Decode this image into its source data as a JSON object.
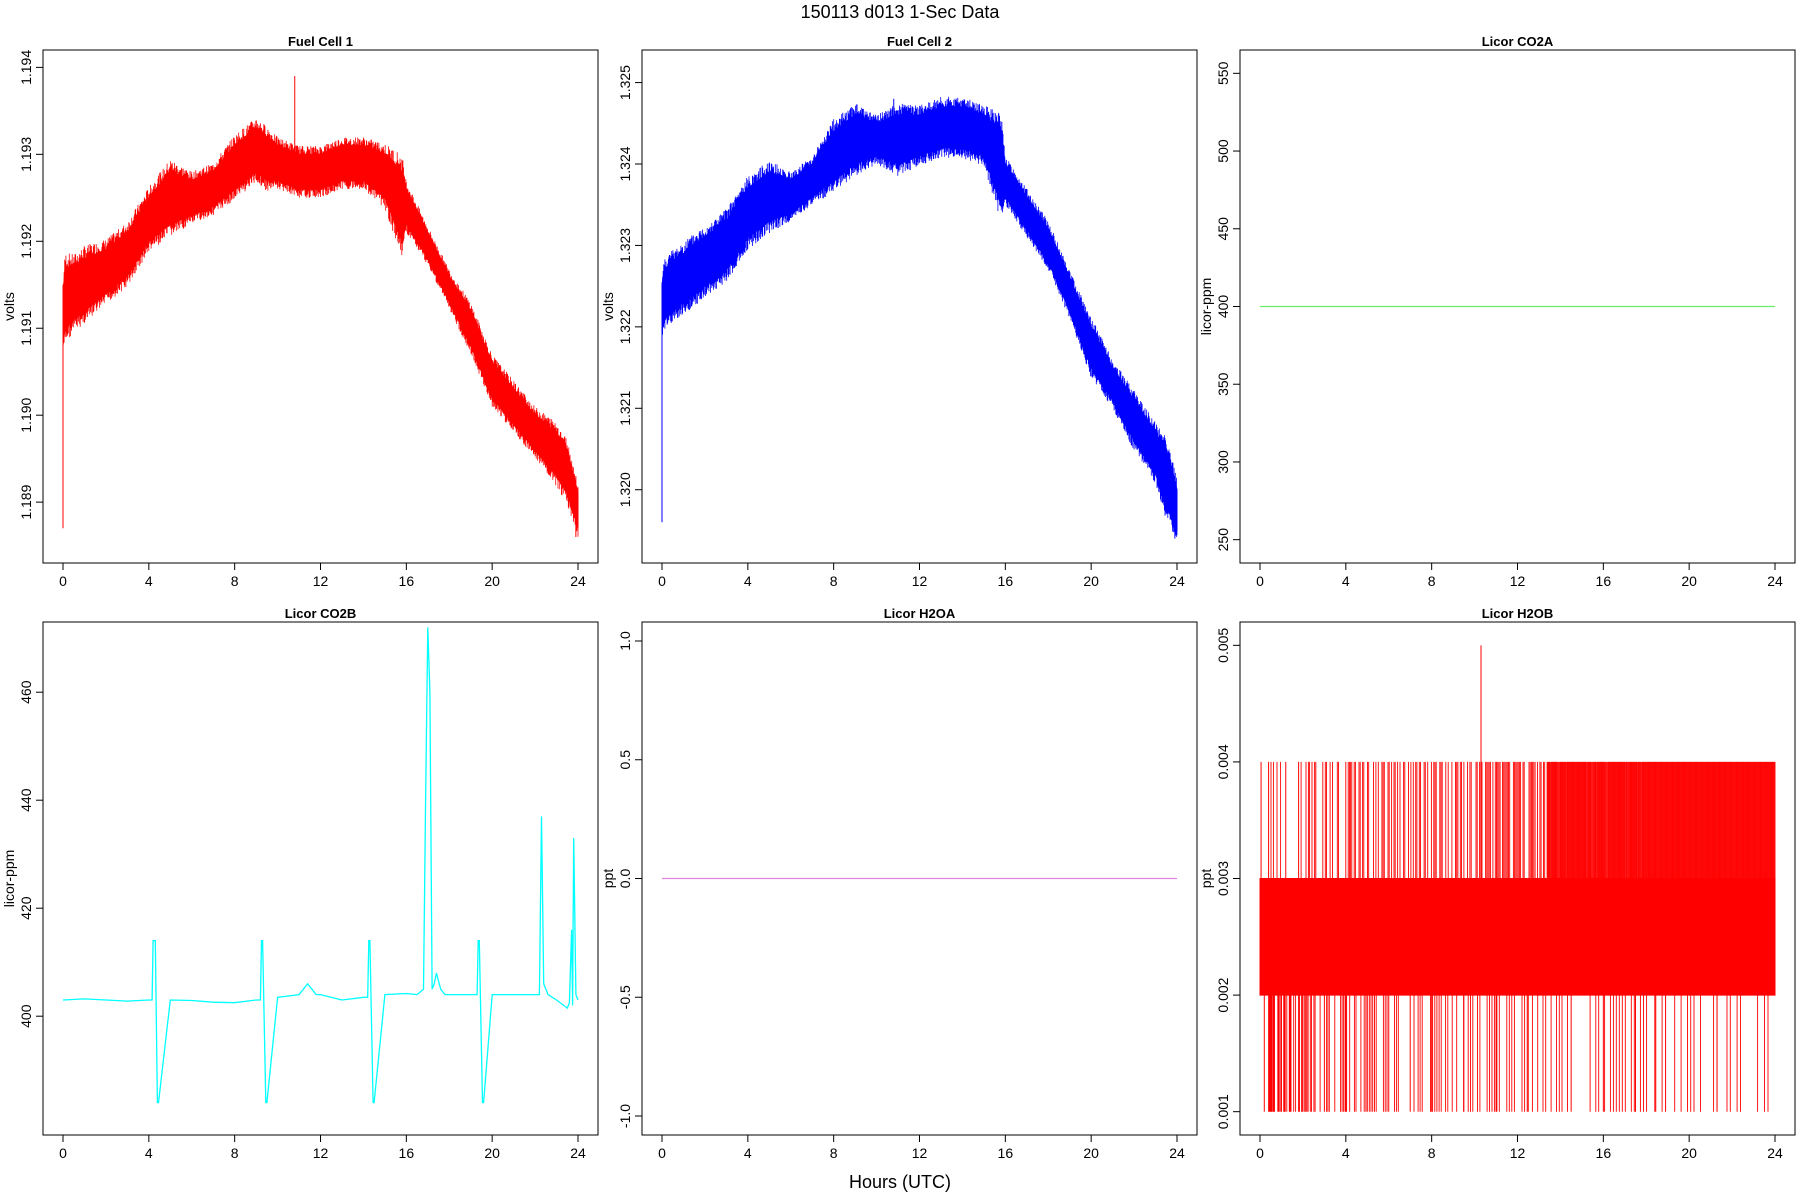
{
  "figure": {
    "title": "150113   d013   1-Sec Data",
    "xlabel": "Hours (UTC)"
  },
  "chart_data": [
    {
      "type": "line",
      "title": "Fuel Cell 1",
      "ylabel": "volts",
      "color": "#ff0000",
      "xlim": [
        0,
        24
      ],
      "ylim": [
        1.1883,
        1.1942
      ],
      "xticks": [
        0,
        4,
        8,
        12,
        16,
        20,
        24
      ],
      "yticks": [
        "1.189",
        "1.190",
        "1.191",
        "1.192",
        "1.193",
        "1.194"
      ],
      "band": true,
      "x": [
        0,
        0.1,
        0.5,
        1,
        2,
        3,
        4,
        5,
        6,
        7,
        8,
        9,
        9.5,
        10,
        11,
        12,
        13,
        14,
        15,
        15.8,
        16,
        17,
        18,
        19,
        20,
        21,
        22,
        23,
        23.5,
        24
      ],
      "y_low": [
        1.1908,
        1.191,
        1.1911,
        1.1912,
        1.1914,
        1.1916,
        1.192,
        1.1922,
        1.1923,
        1.1924,
        1.1926,
        1.1928,
        1.1927,
        1.1927,
        1.1926,
        1.1926,
        1.1927,
        1.1927,
        1.1925,
        1.192,
        1.1922,
        1.1918,
        1.1913,
        1.1908,
        1.1902,
        1.1899,
        1.1896,
        1.1893,
        1.1891,
        1.1887
      ],
      "y_high": [
        1.1914,
        1.1917,
        1.1917,
        1.1918,
        1.1919,
        1.1921,
        1.1925,
        1.1928,
        1.1927,
        1.1928,
        1.1931,
        1.1933,
        1.1932,
        1.1931,
        1.193,
        1.193,
        1.1931,
        1.1931,
        1.193,
        1.1928,
        1.1926,
        1.1921,
        1.1916,
        1.1912,
        1.1906,
        1.1903,
        1.19,
        1.1898,
        1.1896,
        1.1891
      ],
      "spikes": [
        [
          0,
          1.1887,
          1.1915
        ],
        [
          10.8,
          1.1928,
          1.1939
        ],
        [
          23.9,
          1.1886,
          1.1893
        ]
      ]
    },
    {
      "type": "line",
      "title": "Fuel Cell 2",
      "ylabel": "volts",
      "color": "#0000ff",
      "xlim": [
        0,
        24
      ],
      "ylim": [
        1.3191,
        1.3254
      ],
      "xticks": [
        0,
        4,
        8,
        12,
        16,
        20,
        24
      ],
      "yticks": [
        "1.320",
        "1.321",
        "1.322",
        "1.323",
        "1.324",
        "1.325"
      ],
      "band": true,
      "x": [
        0,
        0.1,
        0.5,
        1,
        2,
        3,
        4,
        5,
        6,
        7,
        8,
        9,
        10,
        11,
        12,
        13,
        14,
        15,
        15.8,
        16,
        17,
        18,
        19,
        20,
        21,
        22,
        23,
        23.5,
        24
      ],
      "y_low": [
        1.322,
        1.3221,
        1.3222,
        1.3223,
        1.3225,
        1.3227,
        1.3231,
        1.3233,
        1.3234,
        1.3236,
        1.3238,
        1.324,
        1.3241,
        1.324,
        1.3241,
        1.3242,
        1.3242,
        1.3241,
        1.3235,
        1.3236,
        1.3232,
        1.3228,
        1.3222,
        1.3215,
        1.3211,
        1.3206,
        1.3202,
        1.3198,
        1.3195
      ],
      "y_high": [
        1.3225,
        1.3227,
        1.3228,
        1.3229,
        1.3231,
        1.3233,
        1.3237,
        1.3239,
        1.3238,
        1.324,
        1.3244,
        1.3246,
        1.3245,
        1.3246,
        1.3246,
        1.3247,
        1.3247,
        1.3246,
        1.3244,
        1.324,
        1.3236,
        1.3232,
        1.3226,
        1.322,
        1.3215,
        1.3211,
        1.3207,
        1.3205,
        1.32
      ],
      "spikes": [
        [
          0,
          1.3196,
          1.3225
        ],
        [
          10.8,
          1.324,
          1.3248
        ],
        [
          23.9,
          1.3194,
          1.3201
        ]
      ]
    },
    {
      "type": "line",
      "title": "Licor CO2A",
      "ylabel": "licor-ppm",
      "color": "#66ee66",
      "xlim": [
        0,
        24
      ],
      "ylim": [
        235,
        565
      ],
      "xticks": [
        0,
        4,
        8,
        12,
        16,
        20,
        24
      ],
      "yticks": [
        "250",
        "300",
        "350",
        "400",
        "450",
        "500",
        "550"
      ],
      "x": [
        0,
        24
      ],
      "y": [
        400,
        400
      ]
    },
    {
      "type": "line",
      "title": "Licor CO2B",
      "ylabel": "licor-ppm",
      "color": "#00ffff",
      "xlim": [
        0,
        24
      ],
      "ylim": [
        378,
        473
      ],
      "xticks": [
        0,
        4,
        8,
        12,
        16,
        20,
        24
      ],
      "yticks": [
        "400",
        "420",
        "440",
        "460"
      ],
      "x": [
        0,
        1,
        2,
        3,
        4,
        4.15,
        4.2,
        4.25,
        4.3,
        4.4,
        4.45,
        5,
        6,
        7,
        8,
        9,
        9.2,
        9.25,
        9.3,
        9.45,
        9.5,
        10,
        11,
        11.4,
        11.6,
        11.8,
        12,
        13,
        14,
        14.2,
        14.25,
        14.3,
        14.45,
        14.5,
        15,
        16,
        16.5,
        16.8,
        16.9,
        17.0,
        17.1,
        17.2,
        17.3,
        17.4,
        17.6,
        17.8,
        18,
        18.2,
        19,
        19.3,
        19.35,
        19.4,
        19.55,
        19.6,
        20,
        21,
        21.5,
        22,
        22.2,
        22.3,
        22.4,
        22.6,
        23,
        23.5,
        23.6,
        23.7,
        23.75,
        23.8,
        23.9,
        24
      ],
      "y": [
        403,
        403.2,
        403,
        402.8,
        403,
        403,
        414,
        414,
        414,
        384,
        384,
        403,
        402.9,
        402.6,
        402.5,
        403,
        403,
        414,
        414,
        384,
        384,
        403.5,
        404,
        406,
        405,
        404,
        404,
        403,
        403.5,
        403.5,
        414,
        414,
        384,
        384,
        404,
        404.2,
        404,
        405,
        440,
        472,
        460,
        405,
        406,
        408,
        405,
        404,
        404,
        404,
        404,
        404,
        414,
        414,
        384,
        384,
        404,
        404,
        404,
        404,
        404,
        437,
        406,
        404,
        403,
        401.5,
        402.5,
        416,
        402,
        433,
        404,
        403
      ]
    },
    {
      "type": "line",
      "title": "Licor H2OA",
      "ylabel": "ppt",
      "color": "#dd88dd",
      "xlim": [
        0,
        24
      ],
      "ylim": [
        -1.08,
        1.08
      ],
      "xticks": [
        0,
        4,
        8,
        12,
        16,
        20,
        24
      ],
      "yticks": [
        "-1.0",
        "-0.5",
        "0.0",
        "0.5",
        "1.0"
      ],
      "x": [
        0,
        24
      ],
      "y": [
        0,
        0
      ]
    },
    {
      "type": "line",
      "title": "Licor H2OB",
      "ylabel": "ppt",
      "color": "#ff0000",
      "xlim": [
        0,
        24
      ],
      "ylim": [
        0.0008,
        0.0052
      ],
      "xticks": [
        0,
        4,
        8,
        12,
        16,
        20,
        24
      ],
      "yticks": [
        "0.001",
        "0.002",
        "0.003",
        "0.004",
        "0.005"
      ],
      "band": true,
      "x": [
        0,
        24
      ],
      "y_low": [
        0.002,
        0.002
      ],
      "y_high": [
        0.003,
        0.003
      ],
      "upper_band": [
        [
          0.4,
          24,
          0.003,
          0.004
        ]
      ],
      "spikes": [
        [
          10.3,
          0.003,
          0.005
        ],
        [
          21.3,
          0.001,
          0.002
        ],
        [
          16.0,
          0.001,
          0.002
        ],
        [
          14.5,
          0.001,
          0.002
        ],
        [
          12.5,
          0.001,
          0.002
        ],
        [
          11.0,
          0.001,
          0.002
        ],
        [
          9.5,
          0.001,
          0.002
        ],
        [
          8.0,
          0.001,
          0.002
        ],
        [
          7.0,
          0.001,
          0.002
        ],
        [
          6.0,
          0.001,
          0.002
        ],
        [
          5.0,
          0.001,
          0.002
        ],
        [
          4.0,
          0.001,
          0.002
        ],
        [
          3.0,
          0.001,
          0.002
        ],
        [
          2.0,
          0.001,
          0.002
        ],
        [
          1.0,
          0.001,
          0.002
        ],
        [
          0.2,
          0.001,
          0.002
        ],
        [
          17.5,
          0.001,
          0.002
        ],
        [
          18.4,
          0.001,
          0.002
        ],
        [
          18.9,
          0.001,
          0.002
        ],
        [
          0.05,
          0.003,
          0.004
        ],
        [
          0.4,
          0.003,
          0.004
        ],
        [
          1.2,
          0.003,
          0.004
        ],
        [
          1.8,
          0.003,
          0.004
        ],
        [
          2.6,
          0.003,
          0.004
        ]
      ]
    }
  ]
}
